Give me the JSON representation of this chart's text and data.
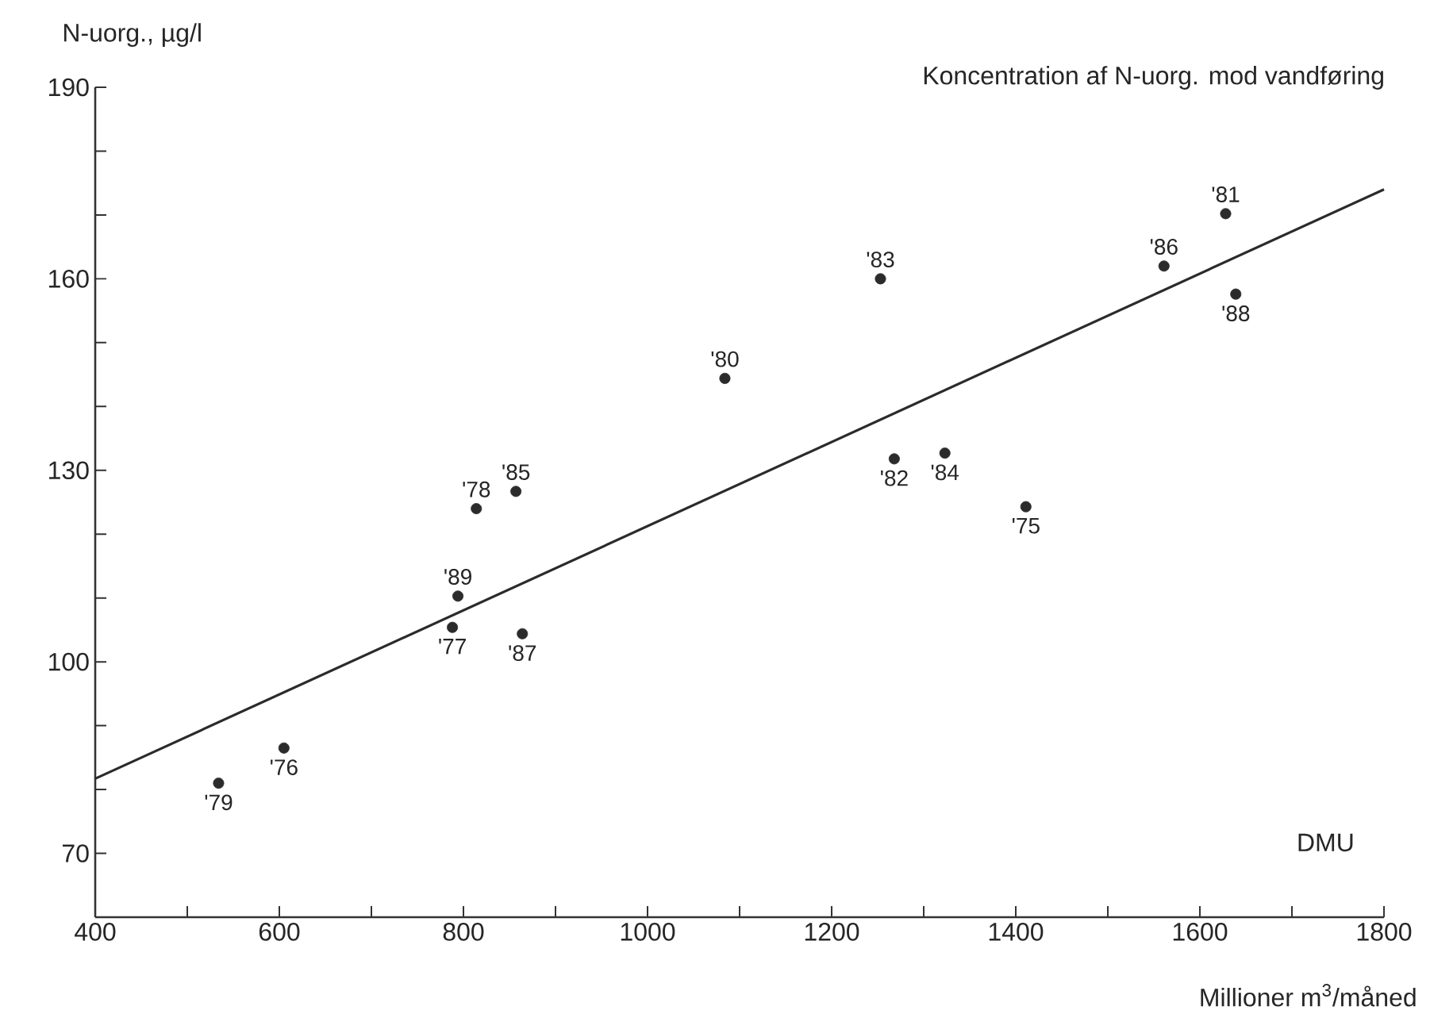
{
  "chart_data": {
    "type": "scatter",
    "title": "Koncentration af N-uorg. mod vandføring",
    "xlabel": "Millioner m$^{3}$/måned",
    "ylabel": "N-uorg., µg/l",
    "xlim": [
      400,
      1800
    ],
    "ylim": [
      60,
      190
    ],
    "xticks": [
      400,
      {
        "value": 500,
        "label": null
      },
      600,
      {
        "value": 700,
        "label": null
      },
      800,
      {
        "value": 900,
        "label": null
      },
      1000,
      {
        "value": 1100,
        "label": null
      },
      1200,
      {
        "value": 1300,
        "label": null
      },
      1400,
      {
        "value": 1500,
        "label": null
      },
      1600,
      {
        "value": 1700,
        "label": null
      },
      1800
    ],
    "yticks": [
      70,
      {
        "value": 80,
        "label": null
      },
      {
        "value": 90,
        "label": null
      },
      100,
      {
        "value": 110,
        "label": null
      },
      {
        "value": 120,
        "label": null
      },
      130,
      {
        "value": 140,
        "label": null
      },
      {
        "value": 150,
        "label": null
      },
      160,
      {
        "value": 170,
        "label": null
      },
      {
        "value": 180,
        "label": null
      },
      190
    ],
    "marker": "circle",
    "grid": false,
    "series": [
      {
        "color": "#2b2b2b",
        "x": [
          534,
          605,
          788,
          794,
          864,
          814,
          857,
          1084,
          1253,
          1268,
          1323,
          1411,
          1561,
          1628,
          1639
        ],
        "values": [
          81,
          86.5,
          105.4,
          110.3,
          104.4,
          124,
          126.7,
          144.4,
          160,
          131.8,
          132.7,
          124.3,
          162,
          170.2,
          157.6
        ]
      },
      {
        "type": "line",
        "marker": "none",
        "color": "#2b2b2b",
        "x": [
          400,
          1800
        ],
        "values": [
          81.7,
          174
        ]
      }
    ],
    "annotations": [
      {
        "text": "'79",
        "x": 534,
        "y": 81
      },
      {
        "text": "'76",
        "x": 605,
        "y": 86.5
      },
      {
        "text": "'77",
        "x": 788,
        "y": 105.4
      },
      {
        "text": "'89",
        "x": 794,
        "y": 110.3
      },
      {
        "text": "'87",
        "x": 864,
        "y": 104.4
      },
      {
        "text": "'78",
        "x": 814,
        "y": 124
      },
      {
        "text": "'85",
        "x": 857,
        "y": 126.7
      },
      {
        "text": "'80",
        "x": 1084,
        "y": 144.4
      },
      {
        "text": "'83",
        "x": 1253,
        "y": 160
      },
      {
        "text": "'82",
        "x": 1268,
        "y": 131.8
      },
      {
        "text": "'84",
        "x": 1323,
        "y": 132.7
      },
      {
        "text": "'75",
        "x": 1411,
        "y": 124.3
      },
      {
        "text": "'86",
        "x": 1561,
        "y": 162
      },
      {
        "text": "'81",
        "x": 1628,
        "y": 170.2
      },
      {
        "text": "'88",
        "x": 1639,
        "y": 157.6
      },
      "DMU"
    ]
  }
}
